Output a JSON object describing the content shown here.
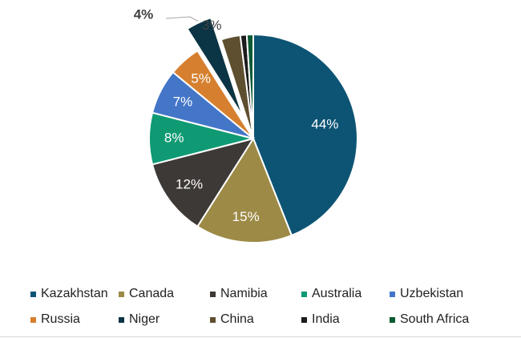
{
  "chart_data": {
    "type": "pie",
    "title": "",
    "slices": [
      {
        "name": "Kazakhstan",
        "value": 44,
        "label": "44%",
        "color": "#0d5474",
        "label_color": "#ffffff"
      },
      {
        "name": "Canada",
        "value": 15,
        "label": "15%",
        "color": "#9c8a46",
        "label_color": "#ffffff"
      },
      {
        "name": "Namibia",
        "value": 12,
        "label": "12%",
        "color": "#3d3936",
        "label_color": "#ffffff"
      },
      {
        "name": "Australia",
        "value": 8,
        "label": "8%",
        "color": "#0f9a74",
        "label_color": "#ffffff"
      },
      {
        "name": "Uzbekistan",
        "value": 7,
        "label": "7%",
        "color": "#4476c8",
        "label_color": "#ffffff"
      },
      {
        "name": "Russia",
        "value": 5,
        "label": "5%",
        "color": "#d6802f",
        "label_color": "#ffffff"
      },
      {
        "name": "Niger",
        "value": 4,
        "label": "4%",
        "color": "#0b3444",
        "label_color": "#404040",
        "exploded": true
      },
      {
        "name": "China",
        "value": 3,
        "label": "3%",
        "color": "#5e4f30",
        "label_color": "#404040"
      },
      {
        "name": "India",
        "value": 1,
        "label": "",
        "color": "#1c1c1c",
        "label_color": "#404040"
      },
      {
        "name": "South Africa",
        "value": 1,
        "label": "",
        "color": "#0a5a34",
        "label_color": "#404040"
      }
    ],
    "legend": {
      "position": "bottom",
      "rows": [
        [
          "Kazakhstan",
          "Canada",
          "Namibia",
          "Australia",
          "Uzbekistan"
        ],
        [
          "Russia",
          "Niger",
          "China",
          "India",
          "South Africa"
        ]
      ]
    }
  }
}
